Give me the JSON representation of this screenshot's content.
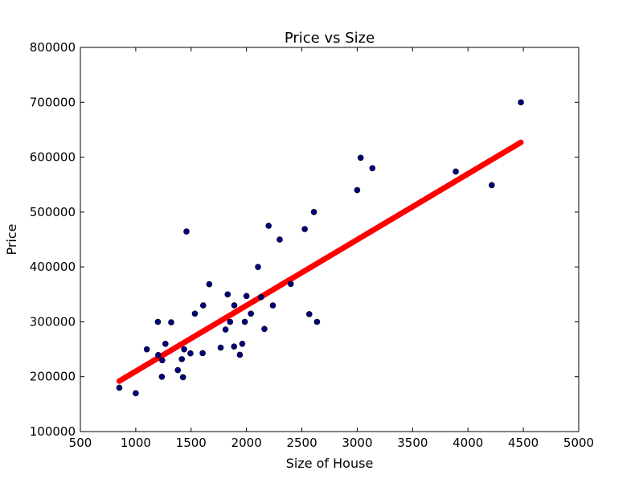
{
  "chart_data": {
    "type": "scatter",
    "title": "Price vs Size",
    "xlabel": "Size of House",
    "ylabel": "Price",
    "xlim": [
      500,
      5000
    ],
    "ylim": [
      100000,
      800000
    ],
    "xticks": [
      500,
      1000,
      1500,
      2000,
      2500,
      3000,
      3500,
      4000,
      4500,
      5000
    ],
    "yticks": [
      100000,
      200000,
      300000,
      400000,
      500000,
      600000,
      700000,
      800000
    ],
    "grid": false,
    "series": [
      {
        "kind": "scatter",
        "color": "#000080",
        "points": [
          [
            852,
            179900
          ],
          [
            1000,
            169900
          ],
          [
            1100,
            249900
          ],
          [
            1200,
            299900
          ],
          [
            1203,
            239500
          ],
          [
            1236,
            199900
          ],
          [
            1239,
            229900
          ],
          [
            1268,
            259900
          ],
          [
            1320,
            299000
          ],
          [
            1380,
            212000
          ],
          [
            1416,
            232000
          ],
          [
            1427,
            198999
          ],
          [
            1437,
            249900
          ],
          [
            1458,
            464500
          ],
          [
            1494,
            242500
          ],
          [
            1534,
            314900
          ],
          [
            1604,
            242900
          ],
          [
            1609,
            329900
          ],
          [
            1664,
            368500
          ],
          [
            1767,
            252900
          ],
          [
            1811,
            285900
          ],
          [
            1830,
            349900
          ],
          [
            1852,
            299900
          ],
          [
            1888,
            255000
          ],
          [
            1890,
            329999
          ],
          [
            1940,
            239999
          ],
          [
            1962,
            259900
          ],
          [
            1985,
            299900
          ],
          [
            2000,
            347000
          ],
          [
            2040,
            314900
          ],
          [
            2104,
            399900
          ],
          [
            2132,
            345000
          ],
          [
            2162,
            287000
          ],
          [
            2200,
            475000
          ],
          [
            2238,
            329900
          ],
          [
            2300,
            449900
          ],
          [
            2400,
            369000
          ],
          [
            2526,
            469000
          ],
          [
            2567,
            314000
          ],
          [
            2609,
            499998
          ],
          [
            2637,
            299900
          ],
          [
            3000,
            539900
          ],
          [
            3031,
            599000
          ],
          [
            3137,
            579900
          ],
          [
            3890,
            573900
          ],
          [
            4215,
            549000
          ],
          [
            4478,
            699900
          ]
        ]
      },
      {
        "kind": "line",
        "color": "#ff0000",
        "x": [
          852,
          4478
        ],
        "y": [
          192000,
          627000
        ]
      }
    ]
  }
}
